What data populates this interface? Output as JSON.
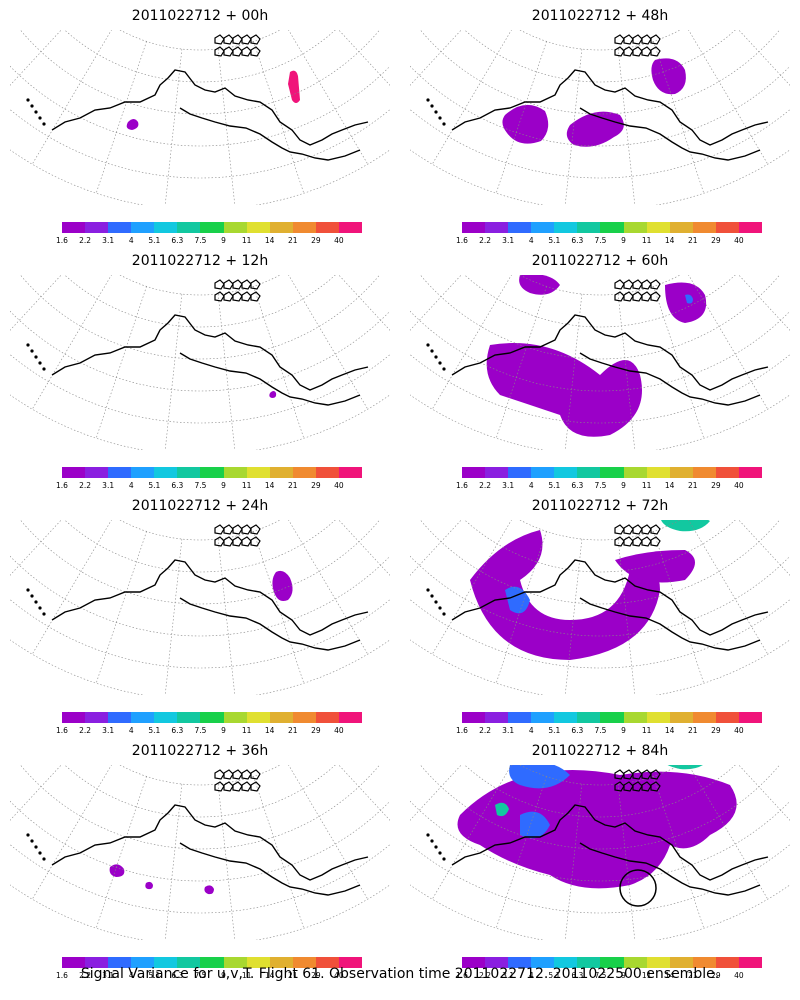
{
  "panels": [
    {
      "title": "2011022712 + 00h",
      "lead": "00h",
      "level": 0
    },
    {
      "title": "2011022712 + 48h",
      "lead": "48h",
      "level": 4
    },
    {
      "title": "2011022712 + 12h",
      "lead": "12h",
      "level": 1
    },
    {
      "title": "2011022712 + 60h",
      "lead": "60h",
      "level": 5
    },
    {
      "title": "2011022712 + 24h",
      "lead": "24h",
      "level": 2
    },
    {
      "title": "2011022712 + 72h",
      "lead": "72h",
      "level": 6
    },
    {
      "title": "2011022712 + 36h",
      "lead": "36h",
      "level": 3
    },
    {
      "title": "2011022712 + 84h",
      "lead": "84h",
      "level": 7
    }
  ],
  "colorbar": {
    "labels": [
      "1.6",
      "2.2",
      "3.1",
      "4",
      "5.1",
      "6.3",
      "7.5",
      "9",
      "11",
      "14",
      "21",
      "29",
      "40"
    ],
    "colors": [
      "#9b00c8",
      "#8a1fe0",
      "#2f6bff",
      "#1fa0ff",
      "#12c8e0",
      "#12c8a0",
      "#18d04a",
      "#a8d830",
      "#e0e030",
      "#e0b030",
      "#f08a30",
      "#f0503a",
      "#f0147a"
    ]
  },
  "caption": "Signal Variance for u,v,T. Flight 61. Observation time 2011022712. 2011022500 ensemble.",
  "marker": {
    "panel_lead": "84h",
    "shape": "circle"
  }
}
